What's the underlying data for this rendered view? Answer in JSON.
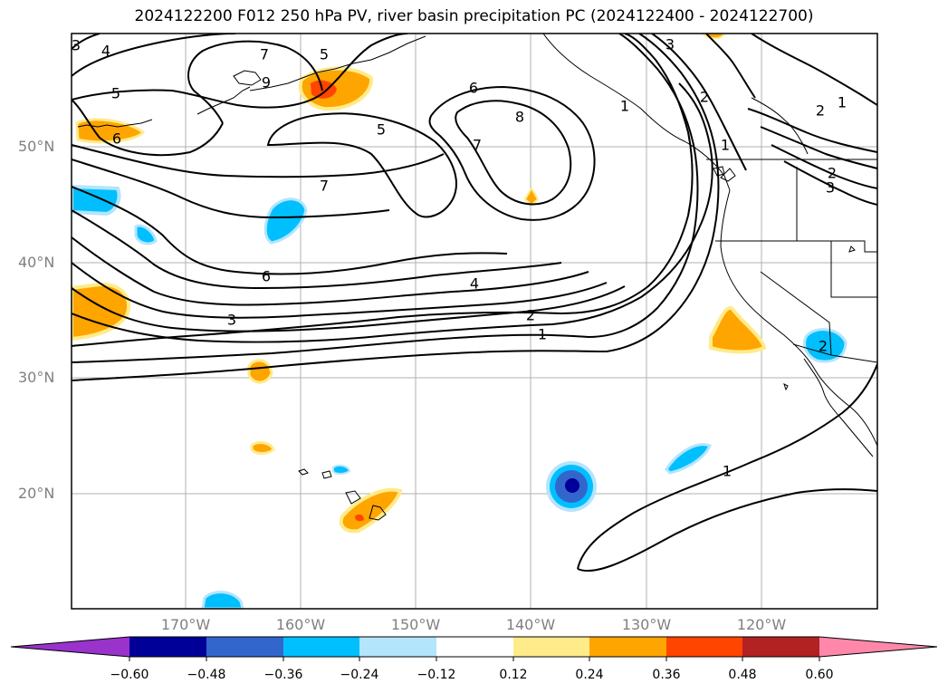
{
  "title": "2024122200 F012 250 hPa PV, river basin precipitation PC (2024122400 - 2024122700)",
  "lat_labels": [
    "50°N",
    "40°N",
    "30°N",
    "20°N"
  ],
  "lon_labels": [
    "170°W",
    "160°W",
    "150°W",
    "140°W",
    "130°W",
    "120°W"
  ],
  "colorbar": {
    "tick_labels": [
      "−0.60",
      "−0.48",
      "−0.36",
      "−0.24",
      "−0.12",
      "0.12",
      "0.24",
      "0.36",
      "0.48",
      "0.60"
    ],
    "colors": [
      "#9933cc",
      "#000099",
      "#3366cc",
      "#00bfff",
      "#b3e5fc",
      "#ffffff",
      "#ffeb8a",
      "#ffa500",
      "#ff4500",
      "#b22222",
      "#ff88aa"
    ]
  },
  "contour_labels": [
    "4",
    "5",
    "6",
    "7",
    "9",
    "5",
    "6",
    "8",
    "7",
    "5",
    "7",
    "6",
    "4",
    "3",
    "2",
    "1",
    "3",
    "2",
    "1",
    "2",
    "1",
    "3",
    "1",
    "2",
    "1",
    "2",
    "3"
  ]
}
